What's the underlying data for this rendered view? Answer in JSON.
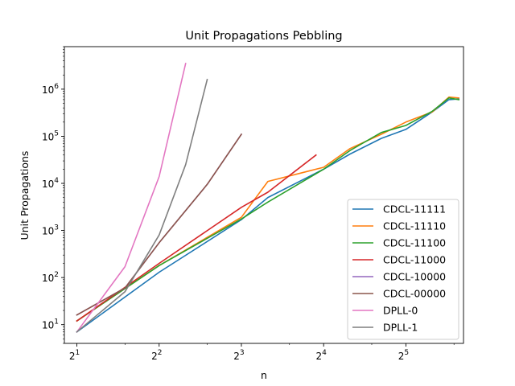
{
  "chart_data": {
    "type": "line",
    "title": "Unit Propagations Pebbling",
    "xlabel": "n",
    "ylabel": "Unit Propagations",
    "x_scale": "log2",
    "y_scale": "log10",
    "xlim": [
      1.8,
      52
    ],
    "ylim": [
      4,
      8000000
    ],
    "x_ticks": [
      {
        "value": 2,
        "base": "2",
        "exp": "1"
      },
      {
        "value": 4,
        "base": "2",
        "exp": "2"
      },
      {
        "value": 8,
        "base": "2",
        "exp": "3"
      },
      {
        "value": 16,
        "base": "2",
        "exp": "4"
      },
      {
        "value": 32,
        "base": "2",
        "exp": "5"
      }
    ],
    "y_ticks": [
      {
        "value": 10,
        "base": "10",
        "exp": "1"
      },
      {
        "value": 100,
        "base": "10",
        "exp": "2"
      },
      {
        "value": 1000,
        "base": "10",
        "exp": "3"
      },
      {
        "value": 10000,
        "base": "10",
        "exp": "4"
      },
      {
        "value": 100000,
        "base": "10",
        "exp": "5"
      },
      {
        "value": 1000000,
        "base": "10",
        "exp": "6"
      }
    ],
    "grid": false,
    "legend_position": "lower-right",
    "series": [
      {
        "name": "CDCL-11111",
        "color": "#1f77b4",
        "x": [
          2,
          4,
          8,
          10,
          16,
          20,
          26,
          32,
          40,
          46,
          50
        ],
        "y": [
          7,
          130,
          1700,
          5000,
          20000,
          42000,
          90000,
          140000,
          330000,
          600000,
          620000
        ]
      },
      {
        "name": "CDCL-11110",
        "color": "#ff7f0e",
        "x": [
          2,
          4,
          8,
          10,
          16,
          20,
          26,
          32,
          40,
          46,
          50
        ],
        "y": [
          12,
          180,
          1900,
          11000,
          22000,
          55000,
          110000,
          200000,
          330000,
          680000,
          650000
        ]
      },
      {
        "name": "CDCL-11100",
        "color": "#2ca02c",
        "x": [
          2,
          4,
          8,
          10,
          16,
          20,
          26,
          32,
          40,
          46,
          50
        ],
        "y": [
          12,
          180,
          1750,
          4000,
          20000,
          50000,
          120000,
          170000,
          340000,
          650000,
          600000
        ]
      },
      {
        "name": "CDCL-11000",
        "color": "#d62728",
        "x": [
          2,
          4,
          8,
          10,
          15
        ],
        "y": [
          12,
          200,
          3100,
          6500,
          40000
        ]
      },
      {
        "name": "CDCL-10000",
        "color": "#9467bd",
        "x": [
          2,
          3,
          4,
          6,
          8
        ],
        "y": [
          16,
          60,
          550,
          9500,
          110000
        ]
      },
      {
        "name": "CDCL-00000",
        "color": "#8c564b",
        "x": [
          2,
          3,
          4,
          6,
          8
        ],
        "y": [
          16,
          60,
          550,
          9500,
          110000
        ]
      },
      {
        "name": "DPLL-0",
        "color": "#e377c2",
        "x": [
          2,
          3,
          4,
          5
        ],
        "y": [
          7,
          170,
          14000,
          3500000
        ]
      },
      {
        "name": "DPLL-1",
        "color": "#7f7f7f",
        "x": [
          2,
          3,
          4,
          5,
          6
        ],
        "y": [
          7,
          50,
          800,
          25000,
          1600000
        ]
      }
    ]
  }
}
